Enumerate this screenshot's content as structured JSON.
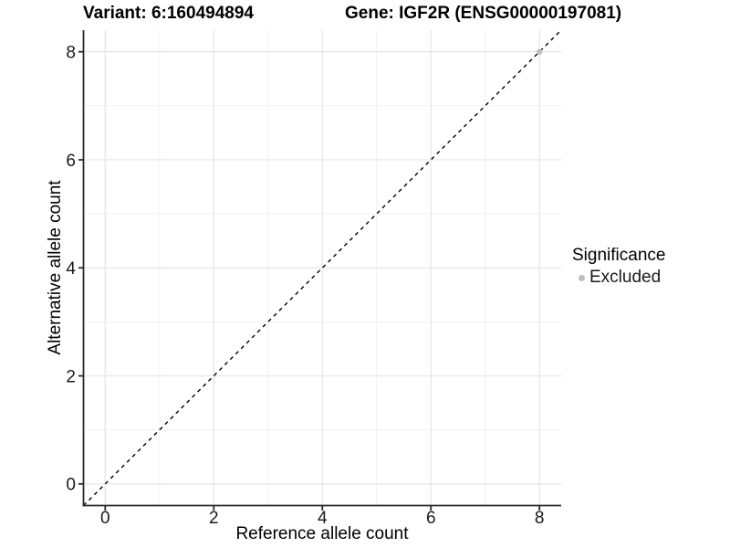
{
  "chart_data": {
    "type": "scatter",
    "title_left": "Variant: 6:160494894",
    "title_right": "Gene: IGF2R (ENSG00000197081)",
    "xlabel": "Reference allele count",
    "ylabel": "Alternative allele count",
    "xlim": [
      -0.4,
      8.4
    ],
    "ylim": [
      -0.4,
      8.4
    ],
    "x_ticks": [
      0,
      2,
      4,
      6,
      8
    ],
    "y_ticks": [
      0,
      2,
      4,
      6,
      8
    ],
    "x_minor_gridlines": [
      1,
      3,
      5,
      7
    ],
    "y_minor_gridlines": [
      1,
      3,
      5,
      7
    ],
    "grid": "on",
    "legend_position": "right",
    "series": [
      {
        "name": "Excluded",
        "color": "#BEBEBE",
        "points": [
          {
            "x": 8,
            "y": 8
          }
        ]
      }
    ],
    "reference_line": {
      "kind": "identity",
      "equation": "y = x",
      "style": "dashed",
      "color": "#000000"
    }
  },
  "legend": {
    "title": "Significance",
    "items": [
      {
        "label": "Excluded",
        "marker": "circle-icon",
        "color": "#BEBEBE"
      }
    ]
  },
  "colors": {
    "background": "#FFFFFF",
    "grid_major": "#E4E4E4",
    "grid_minor": "#F1F1F1",
    "axis_line": "#2A2A2A",
    "tick_text": "#1A1A1A",
    "title_text": "#000000",
    "point": "#BEBEBE"
  }
}
